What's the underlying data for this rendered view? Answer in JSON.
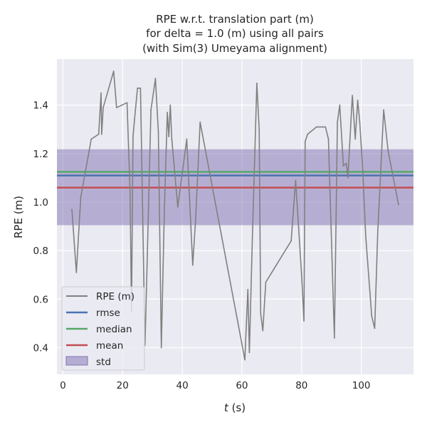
{
  "chart_data": {
    "type": "line",
    "title_lines": [
      "RPE w.r.t. translation part (m)",
      "for delta = 1.0 (m) using all pairs",
      "(with Sim(3) Umeyama alignment)"
    ],
    "xlabel_var": "t",
    "xlabel_unit": " (s)",
    "ylabel": "RPE (m)",
    "xlim": [
      -2,
      117.5
    ],
    "ylim": [
      0.29,
      1.59
    ],
    "x_ticks": [
      0,
      20,
      40,
      60,
      80,
      100
    ],
    "y_ticks": [
      0.4,
      0.6,
      0.8,
      1.0,
      1.2,
      1.4
    ],
    "y_tick_labels": [
      "0.4",
      "0.6",
      "0.8",
      "1.0",
      "1.2",
      "1.4"
    ],
    "grid": true,
    "legend_position": "lower-left",
    "colors": {
      "background": "#eaeaf2",
      "grid": "#ffffff",
      "rpe": "#808080",
      "rmse": "#4c72b0",
      "median": "#55a868",
      "mean": "#c44e52",
      "std": "#8172b2"
    },
    "series": [
      {
        "name": "RPE (m)",
        "x": [
          3.0,
          4.5,
          6.0,
          9.5,
          12.0,
          12.8,
          13.0,
          13.5,
          17.0,
          18.0,
          21.5,
          22.5,
          23.0,
          23.5,
          24.0,
          25.0,
          26.0,
          27.5,
          28.0,
          29.5,
          31.0,
          32.0,
          33.0,
          34.0,
          35.0,
          35.5,
          36.0,
          36.5,
          38.5,
          41.5,
          43.5,
          44.5,
          46.0,
          61.0,
          61.5,
          62.0,
          62.5,
          63.5,
          65.0,
          65.8,
          66.3,
          67.0,
          68.0,
          76.5,
          78.0,
          80.0,
          80.8,
          81.2,
          82.0,
          85.0,
          88.0,
          89.0,
          91.0,
          92.0,
          92.8,
          94.0,
          95.0,
          95.5,
          97.0,
          98.0,
          98.8,
          99.5,
          100.5,
          101.5,
          103.5,
          104.5,
          105.5,
          107.5,
          109.0,
          112.5
        ],
        "y": [
          0.97,
          0.71,
          1.02,
          1.26,
          1.28,
          1.45,
          1.28,
          1.39,
          1.54,
          1.39,
          1.41,
          1.05,
          0.55,
          1.27,
          1.34,
          1.47,
          1.47,
          0.41,
          0.64,
          1.38,
          1.51,
          1.29,
          0.4,
          0.96,
          1.37,
          1.27,
          1.4,
          1.26,
          0.98,
          1.26,
          0.74,
          0.93,
          1.33,
          0.35,
          0.5,
          0.64,
          0.38,
          0.85,
          1.49,
          1.3,
          0.54,
          0.47,
          0.67,
          0.84,
          1.09,
          0.7,
          0.51,
          1.25,
          1.28,
          1.31,
          1.31,
          1.26,
          0.44,
          1.33,
          1.4,
          1.15,
          1.16,
          1.1,
          1.44,
          1.26,
          1.42,
          1.33,
          1.13,
          0.86,
          0.53,
          0.48,
          0.87,
          1.38,
          1.21,
          0.99
        ]
      },
      {
        "name": "rmse",
        "value": 1.11
      },
      {
        "name": "median",
        "value": 1.125
      },
      {
        "name": "mean",
        "value": 1.06
      },
      {
        "name": "std",
        "range": [
          0.905,
          1.218
        ]
      }
    ]
  }
}
